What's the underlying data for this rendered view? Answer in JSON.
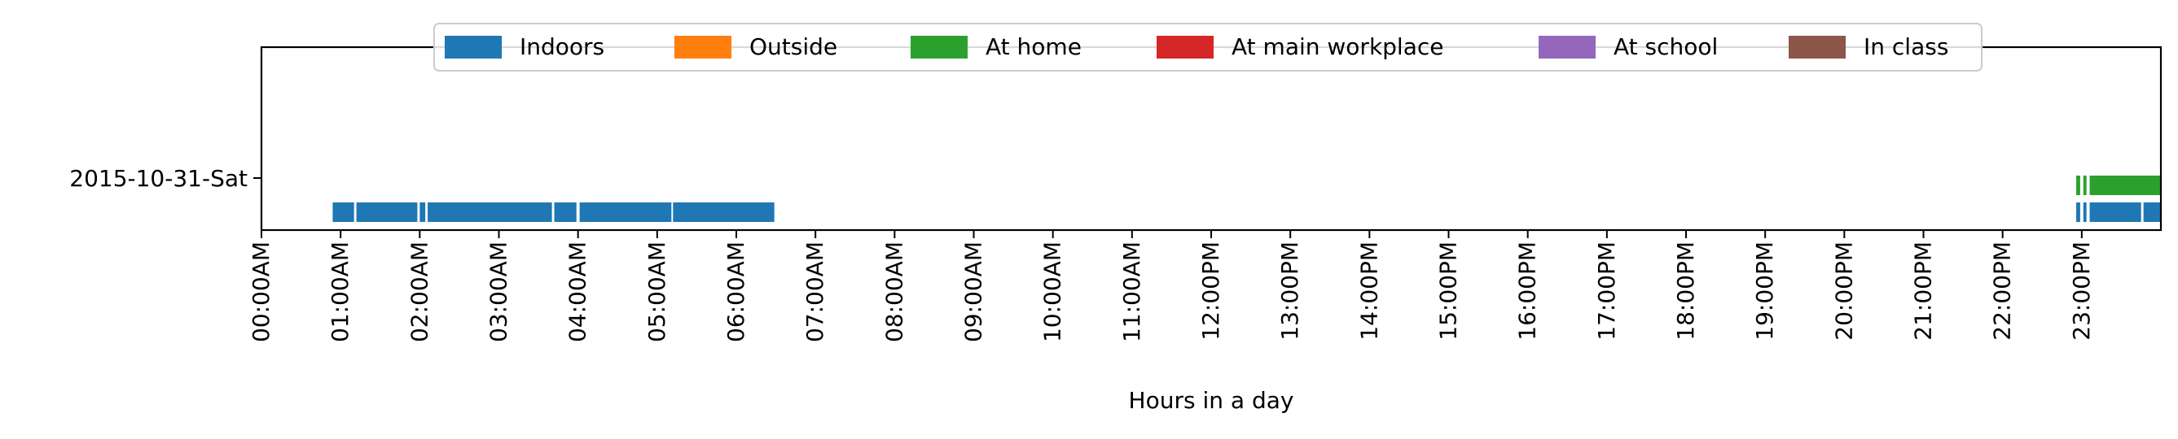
{
  "chart_data": {
    "type": "timeline",
    "title": "",
    "xlabel": "Hours in a day",
    "ylabel": "",
    "xlim": [
      0,
      24
    ],
    "x_ticks": [
      "00:00AM",
      "01:00AM",
      "02:00AM",
      "03:00AM",
      "04:00AM",
      "05:00AM",
      "06:00AM",
      "07:00AM",
      "08:00AM",
      "09:00AM",
      "10:00AM",
      "11:00AM",
      "12:00PM",
      "13:00PM",
      "14:00PM",
      "15:00PM",
      "16:00PM",
      "17:00PM",
      "18:00PM",
      "19:00PM",
      "20:00PM",
      "21:00PM",
      "22:00PM",
      "23:00PM"
    ],
    "rows": [
      "2015-10-31-Sat"
    ],
    "legend_position": "top-center",
    "grid": false,
    "legend": [
      {
        "name": "Indoors",
        "color": "#1f77b4"
      },
      {
        "name": "Outside",
        "color": "#ff7f0e"
      },
      {
        "name": "At home",
        "color": "#2ca02c"
      },
      {
        "name": "At main workplace",
        "color": "#d62728"
      },
      {
        "name": "At school",
        "color": "#9467bd"
      },
      {
        "name": "In class",
        "color": "#8c564b"
      }
    ],
    "series": [
      {
        "name": "Indoors",
        "color": "#1f77b4",
        "intervals": [
          [
            0.9,
            1.17
          ],
          [
            1.2,
            1.97
          ],
          [
            2.0,
            2.07
          ],
          [
            2.1,
            3.67
          ],
          [
            3.7,
            3.98
          ],
          [
            4.02,
            5.18
          ],
          [
            5.2,
            6.48
          ],
          [
            22.93,
            22.98
          ],
          [
            23.02,
            23.06
          ],
          [
            23.1,
            23.75
          ],
          [
            23.78,
            24.0
          ]
        ]
      },
      {
        "name": "At home",
        "color": "#2ca02c",
        "intervals": [
          [
            22.93,
            22.98
          ],
          [
            23.02,
            23.06
          ],
          [
            23.1,
            24.0
          ]
        ]
      }
    ]
  }
}
